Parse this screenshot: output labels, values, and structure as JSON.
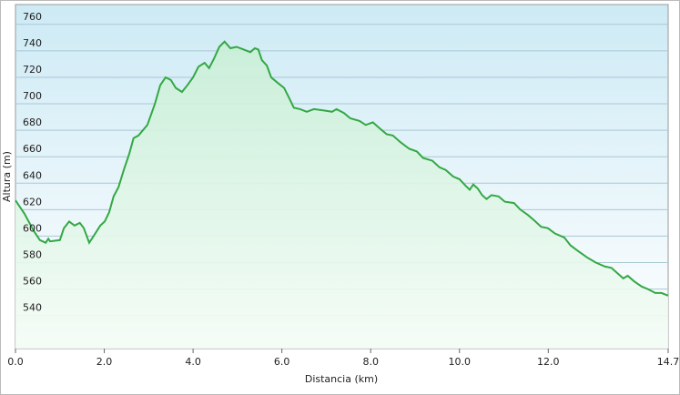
{
  "chart_data": {
    "type": "area",
    "x_label": "Distancia  (km)",
    "y_label": "Altura (m)",
    "x": [
      0,
      0.2,
      0.41,
      0.55,
      0.68,
      0.74,
      0.78,
      1.0,
      1.09,
      1.21,
      1.33,
      1.45,
      1.54,
      1.66,
      1.76,
      1.91,
      2.01,
      2.11,
      2.21,
      2.32,
      2.44,
      2.56,
      2.66,
      2.77,
      2.97,
      3.14,
      3.26,
      3.38,
      3.5,
      3.61,
      3.75,
      3.87,
      4.0,
      4.12,
      4.26,
      4.36,
      4.47,
      4.59,
      4.71,
      4.84,
      4.98,
      5.14,
      5.29,
      5.39,
      5.47,
      5.55,
      5.66,
      5.76,
      5.9,
      6.05,
      6.17,
      6.27,
      6.41,
      6.56,
      6.72,
      6.93,
      7.13,
      7.23,
      7.4,
      7.54,
      7.75,
      7.89,
      8.05,
      8.22,
      8.36,
      8.5,
      8.67,
      8.87,
      9.04,
      9.18,
      9.39,
      9.55,
      9.69,
      9.86,
      10.0,
      10.14,
      10.23,
      10.31,
      10.41,
      10.51,
      10.61,
      10.72,
      10.88,
      11.02,
      11.23,
      11.37,
      11.54,
      11.68,
      11.84,
      11.99,
      12.15,
      12.36,
      12.5,
      12.66,
      12.87,
      13.07,
      13.28,
      13.42,
      13.59,
      13.69,
      13.79,
      13.93,
      14.1,
      14.24,
      14.41,
      14.55,
      14.7
    ],
    "series": [
      {
        "color": "#33a844",
        "values": [
          627,
          617,
          604,
          597,
          595,
          598,
          596,
          597,
          606,
          611,
          608,
          610,
          606,
          595,
          600,
          608,
          611,
          618,
          630,
          637,
          650,
          662,
          674,
          676,
          684,
          700,
          714,
          720,
          718,
          712,
          709,
          714,
          720,
          728,
          731,
          727,
          734,
          743,
          747,
          742,
          743,
          741,
          739,
          742,
          741,
          733,
          729,
          720,
          716,
          712,
          704,
          697,
          696,
          694,
          696,
          695,
          694,
          696,
          693,
          689,
          687,
          684,
          686,
          681,
          677,
          676,
          671,
          666,
          664,
          659,
          657,
          652,
          650,
          645,
          643,
          638,
          635,
          639,
          636,
          631,
          628,
          631,
          630,
          626,
          625,
          620,
          616,
          612,
          607,
          606,
          602,
          599,
          593,
          589,
          584,
          580,
          577,
          576,
          571,
          568,
          570,
          566,
          562,
          560,
          557,
          557,
          555
        ]
      }
    ],
    "xlim": [
      0,
      14.7
    ],
    "xticks": [
      {
        "value": 0,
        "label": "0.0"
      },
      {
        "value": 2,
        "label": "2.0"
      },
      {
        "value": 4,
        "label": "4.0"
      },
      {
        "value": 6,
        "label": "6.0"
      },
      {
        "value": 8,
        "label": "8.0"
      },
      {
        "value": 10,
        "label": "10.0"
      },
      {
        "value": 12,
        "label": "12.0"
      },
      14.7
    ],
    "ylim": [
      515,
      775
    ],
    "yticks": [
      540,
      560,
      580,
      600,
      620,
      640,
      660,
      680,
      700,
      720,
      740,
      760
    ],
    "grid": true
  }
}
